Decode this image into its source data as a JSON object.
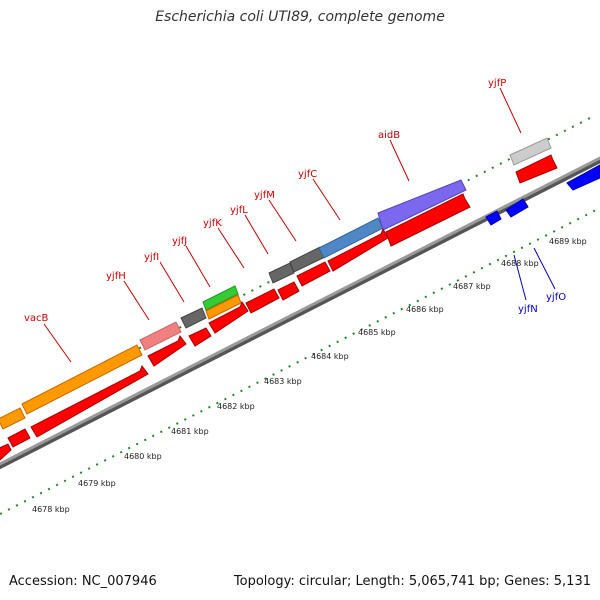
{
  "header": {
    "title": "Escherichia coli UTI89, complete genome"
  },
  "footer": {
    "accession": "Accession: NC_007946",
    "topology": "Topology: circular; Length: 5,065,741 bp; Genes: 5,131"
  },
  "colors": {
    "forward_label": "#cc0000",
    "reverse_label": "#0000cc",
    "cds_forward": "#ff0000",
    "cds_reverse": "#0000ff",
    "backbone": "#888888",
    "tick": "#228822"
  },
  "kbp_labels": [
    "4678 kbp",
    "4679 kbp",
    "4680 kbp",
    "4681 kbp",
    "4682 kbp",
    "4683 kbp",
    "4684 kbp",
    "4685 kbp",
    "4686 kbp",
    "4687 kbp",
    "4688 kbp",
    "4689 kbp"
  ],
  "forward_gene_labels": [
    "vacB",
    "yjfH",
    "yjfI",
    "yjfJ",
    "yjfK",
    "yjfL",
    "yjfM",
    "yjfC",
    "aidB",
    "yjfP"
  ],
  "reverse_gene_labels": [
    "yjfN",
    "yjfO"
  ]
}
